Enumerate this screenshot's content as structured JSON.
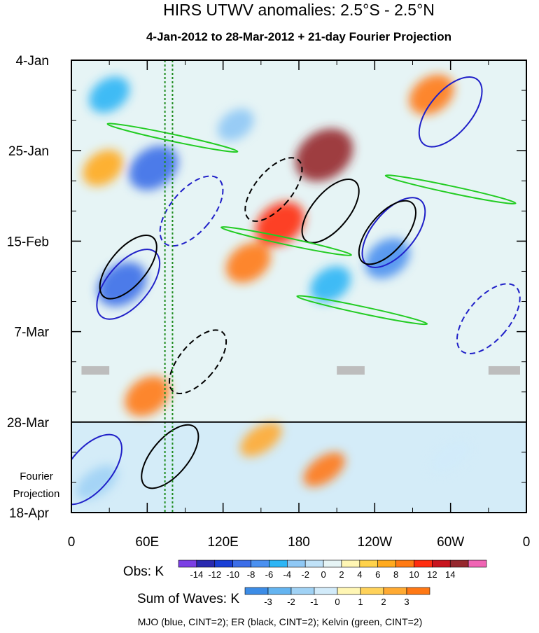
{
  "chart_data": {
    "type": "heatmap",
    "title": "HIRS UTWV anomalies: 2.5°S - 2.5°N",
    "subtitle": "4-Jan-2012 to 28-Mar-2012 + 21-day Fourier Projection",
    "x_tick_labels": [
      "0",
      "60E",
      "120E",
      "180",
      "120W",
      "60W",
      "0"
    ],
    "x_range_deg_east": [
      0,
      360
    ],
    "y_tick_labels": [
      "4-Jan",
      "25-Jan",
      "15-Feb",
      "7-Mar",
      "28-Mar",
      "18-Apr"
    ],
    "y_range_days": [
      0,
      105
    ],
    "observation_end_label": "28-Mar",
    "projection_label": [
      "Fourier",
      "Projection"
    ],
    "obs_colorbar": {
      "label": "Obs: K",
      "levels": [
        "-14",
        "-12",
        "-10",
        "-8",
        "-6",
        "-4",
        "-2",
        "0",
        "2",
        "4",
        "6",
        "8",
        "10",
        "12",
        "14"
      ],
      "colors": [
        "#7b3fe4",
        "#2a2ab0",
        "#1a3fd6",
        "#3c6ee8",
        "#4a90f0",
        "#2cb5f5",
        "#8fc8f5",
        "#c0e2f8",
        "#e6f4f5",
        "#fff6b4",
        "#ffd24a",
        "#ffaa1e",
        "#ff7a14",
        "#ff2d10",
        "#c8141e",
        "#96282e",
        "#f064b4"
      ]
    },
    "waves_colorbar": {
      "label": "Sum of Waves: K",
      "levels": [
        "-3",
        "-2",
        "-1",
        "0",
        "1",
        "2",
        "3"
      ],
      "colors": [
        "#3c8ce6",
        "#64b4f0",
        "#a0d2f5",
        "#d2ebfa",
        "#fff6b4",
        "#ffd25a",
        "#ffaa32",
        "#ff7814"
      ]
    },
    "legend_text": "MJO (blue, CINT=2); ER (black, CINT=2); Kelvin (green, CINT=2)",
    "series_colors": {
      "MJO": "#2020c8",
      "ER": "#000000",
      "Kelvin": "#22cc22"
    },
    "anomaly_features": [
      {
        "lon": 200,
        "day": 22,
        "value": 14
      },
      {
        "lon": 165,
        "day": 38,
        "value": 10
      },
      {
        "lon": 140,
        "day": 47,
        "value": 8
      },
      {
        "lon": 285,
        "day": 8,
        "value": 8
      },
      {
        "lon": 60,
        "day": 78,
        "value": 8
      },
      {
        "lon": 25,
        "day": 25,
        "value": 6
      },
      {
        "lon": 65,
        "day": 25,
        "value": -10
      },
      {
        "lon": 30,
        "day": 8,
        "value": -6
      },
      {
        "lon": 40,
        "day": 52,
        "value": -10
      },
      {
        "lon": 250,
        "day": 46,
        "value": -8
      },
      {
        "lon": 205,
        "day": 52,
        "value": -6
      },
      {
        "lon": 130,
        "day": 15,
        "value": -4
      },
      {
        "lon": 200,
        "day": 95,
        "value": 3
      },
      {
        "lon": 150,
        "day": 88,
        "value": 2
      },
      {
        "lon": 20,
        "day": 98,
        "value": -2
      },
      {
        "lon": 300,
        "day": 92,
        "value": -1
      }
    ],
    "wave_contours": [
      {
        "wave": "MJO",
        "lon": 45,
        "day": 52,
        "sign": "+"
      },
      {
        "wave": "MJO",
        "lon": 255,
        "day": 40,
        "sign": "+"
      },
      {
        "wave": "MJO",
        "lon": 300,
        "day": 12,
        "sign": "+"
      },
      {
        "wave": "MJO",
        "lon": 15,
        "day": 95,
        "sign": "+"
      },
      {
        "wave": "MJO",
        "lon": 95,
        "day": 35,
        "sign": "-"
      },
      {
        "wave": "MJO",
        "lon": 330,
        "day": 60,
        "sign": "-"
      },
      {
        "wave": "ER",
        "lon": 45,
        "day": 48,
        "sign": "+"
      },
      {
        "wave": "ER",
        "lon": 205,
        "day": 35,
        "sign": "+"
      },
      {
        "wave": "ER",
        "lon": 250,
        "day": 40,
        "sign": "+"
      },
      {
        "wave": "ER",
        "lon": 78,
        "day": 92,
        "sign": "+"
      },
      {
        "wave": "ER",
        "lon": 160,
        "day": 30,
        "sign": "-"
      },
      {
        "wave": "ER",
        "lon": 100,
        "day": 70,
        "sign": "-"
      },
      {
        "wave": "Kelvin",
        "lon": 170,
        "day": 42,
        "sign": "+"
      },
      {
        "wave": "Kelvin",
        "lon": 230,
        "day": 58,
        "sign": "+"
      },
      {
        "wave": "Kelvin",
        "lon": 80,
        "day": 18,
        "sign": "+"
      },
      {
        "wave": "Kelvin",
        "lon": 300,
        "day": 30,
        "sign": "+"
      }
    ],
    "vertical_reference_lines_lon": [
      74,
      80
    ],
    "missing_data_day": 72,
    "missing_data_lon_ranges": [
      [
        8,
        30
      ],
      [
        210,
        232
      ],
      [
        330,
        355
      ]
    ]
  }
}
